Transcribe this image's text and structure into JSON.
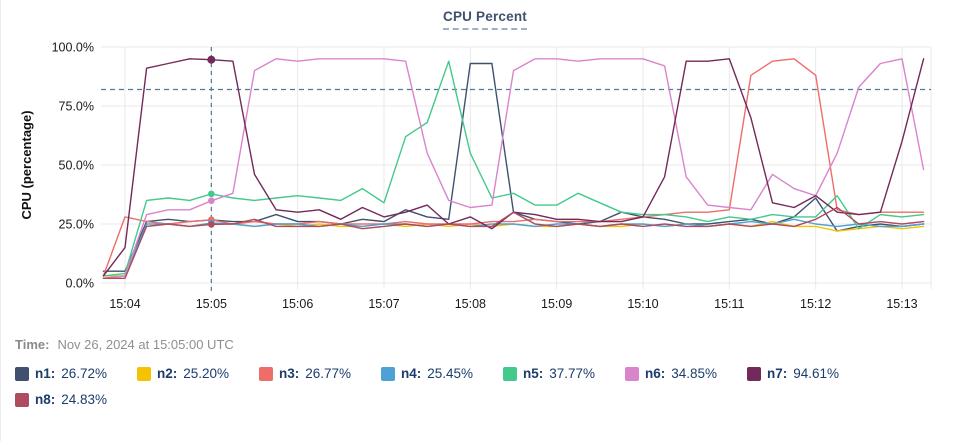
{
  "title": "CPU Percent",
  "time_row": {
    "label": "Time:",
    "value": "Nov 26, 2024 at 15:05:00 UTC"
  },
  "colors": {
    "grid": "#e8e8e8",
    "tick_text": "#1a1a1a",
    "title_accent": "#3f516e",
    "legend_text": "#1c3c6d",
    "dashed_guides": "#4e7b8f"
  },
  "legend": {
    "items": [
      {
        "name": "n1",
        "value": "26.72%",
        "color": "#3f516e"
      },
      {
        "name": "n2",
        "value": "25.20%",
        "color": "#f5c400"
      },
      {
        "name": "n3",
        "value": "26.77%",
        "color": "#ee6d68"
      },
      {
        "name": "n4",
        "value": "25.45%",
        "color": "#4da1d6"
      },
      {
        "name": "n5",
        "value": "37.77%",
        "color": "#42c98b"
      },
      {
        "name": "n6",
        "value": "34.85%",
        "color": "#da84cc"
      },
      {
        "name": "n7",
        "value": "94.61%",
        "color": "#732959"
      },
      {
        "name": "n8",
        "value": "24.83%",
        "color": "#b04a5e"
      }
    ]
  },
  "chart_data": {
    "type": "line",
    "title": "CPU Percent",
    "xlabel": "",
    "ylabel": "CPU (percentage)",
    "ylim": [
      0,
      100
    ],
    "grid": true,
    "yticks": {
      "values": [
        0,
        25,
        50,
        75,
        100
      ],
      "labels": [
        "0.0%",
        "25.0%",
        "50.0%",
        "75.0%",
        "100.0%"
      ]
    },
    "xticks": [
      "15:04",
      "15:05",
      "15:06",
      "15:07",
      "15:08",
      "15:09",
      "15:10",
      "15:11",
      "15:12",
      "15:13"
    ],
    "x_start": "15:03:45",
    "sample_interval_seconds": 15,
    "threshold_line": {
      "value": 82,
      "style": "dashed",
      "color": "#4e7b8f"
    },
    "crosshair": {
      "time": "15:05:00",
      "x_tick": "15:05",
      "index": 5,
      "color": "#4e7b8f"
    },
    "series": [
      {
        "name": "n1",
        "color": "#3f516e",
        "values": [
          5,
          5,
          26,
          27,
          26,
          26.72,
          26,
          26,
          29,
          26,
          26,
          25,
          27,
          26,
          31,
          28,
          27,
          93,
          93,
          30,
          27,
          26,
          25,
          26,
          30,
          28,
          27,
          25,
          25,
          26,
          27,
          25,
          28,
          36,
          22,
          24,
          25,
          24,
          25
        ]
      },
      {
        "name": "n2",
        "color": "#f5c400",
        "values": [
          3,
          3,
          24,
          25,
          24,
          25.2,
          25,
          24,
          25,
          24,
          25,
          24,
          24,
          25,
          24,
          25,
          24,
          25,
          24,
          25,
          24,
          24,
          25,
          24,
          24,
          25,
          24,
          25,
          24,
          25,
          24,
          26,
          24,
          24,
          22,
          23,
          24,
          23,
          24
        ]
      },
      {
        "name": "n3",
        "color": "#ee6d68",
        "values": [
          3,
          28,
          26,
          25,
          26,
          26.77,
          25,
          26,
          25,
          25,
          26,
          25,
          25,
          25,
          26,
          25,
          25,
          25,
          26,
          26,
          27,
          26,
          26,
          26,
          27,
          28,
          29,
          30,
          30,
          31,
          88,
          94,
          95,
          88,
          31,
          29,
          30,
          30,
          30
        ]
      },
      {
        "name": "n4",
        "color": "#4da1d6",
        "values": [
          2,
          3,
          25,
          25,
          24,
          25.45,
          25,
          24,
          25,
          25,
          24,
          25,
          24,
          25,
          25,
          24,
          25,
          24,
          25,
          25,
          24,
          25,
          25,
          24,
          25,
          25,
          24,
          25,
          24,
          25,
          26,
          25,
          27,
          25,
          24,
          25,
          24,
          24,
          25
        ]
      },
      {
        "name": "n5",
        "color": "#42c98b",
        "values": [
          3,
          4,
          35,
          36,
          35,
          37.77,
          36,
          35,
          36,
          37,
          36,
          35,
          40,
          34,
          62,
          68,
          94,
          55,
          36,
          38,
          33,
          33,
          38,
          34,
          30,
          29,
          29,
          28,
          26,
          28,
          27,
          29,
          28,
          28,
          37,
          23,
          29,
          28,
          29
        ]
      },
      {
        "name": "n6",
        "color": "#da84cc",
        "values": [
          2,
          3,
          29,
          31,
          31,
          34.85,
          38,
          90,
          95,
          94,
          95,
          95,
          95,
          95,
          94,
          55,
          35,
          32,
          33,
          90,
          95,
          95,
          94,
          95,
          95,
          95,
          92,
          45,
          33,
          32,
          31,
          46,
          40,
          37,
          55,
          83,
          93,
          95,
          48
        ]
      },
      {
        "name": "n7",
        "color": "#732959",
        "values": [
          3,
          15,
          91,
          93,
          95,
          94.61,
          94,
          46,
          31,
          30,
          31,
          27,
          32,
          28,
          30,
          33,
          25,
          28,
          23,
          30,
          29,
          27,
          27,
          26,
          26,
          28,
          45,
          94,
          94,
          95,
          70,
          34,
          32,
          37,
          30,
          29,
          30,
          60,
          95
        ]
      },
      {
        "name": "n8",
        "color": "#b04a5e",
        "values": [
          2,
          2,
          24,
          25,
          24,
          24.83,
          25,
          27,
          24,
          24,
          24,
          25,
          23,
          24,
          25,
          24,
          25,
          24,
          24,
          30,
          25,
          24,
          25,
          24,
          25,
          24,
          25,
          24,
          24,
          25,
          24,
          25,
          24,
          27,
          32,
          25,
          26,
          25,
          26
        ]
      }
    ]
  }
}
